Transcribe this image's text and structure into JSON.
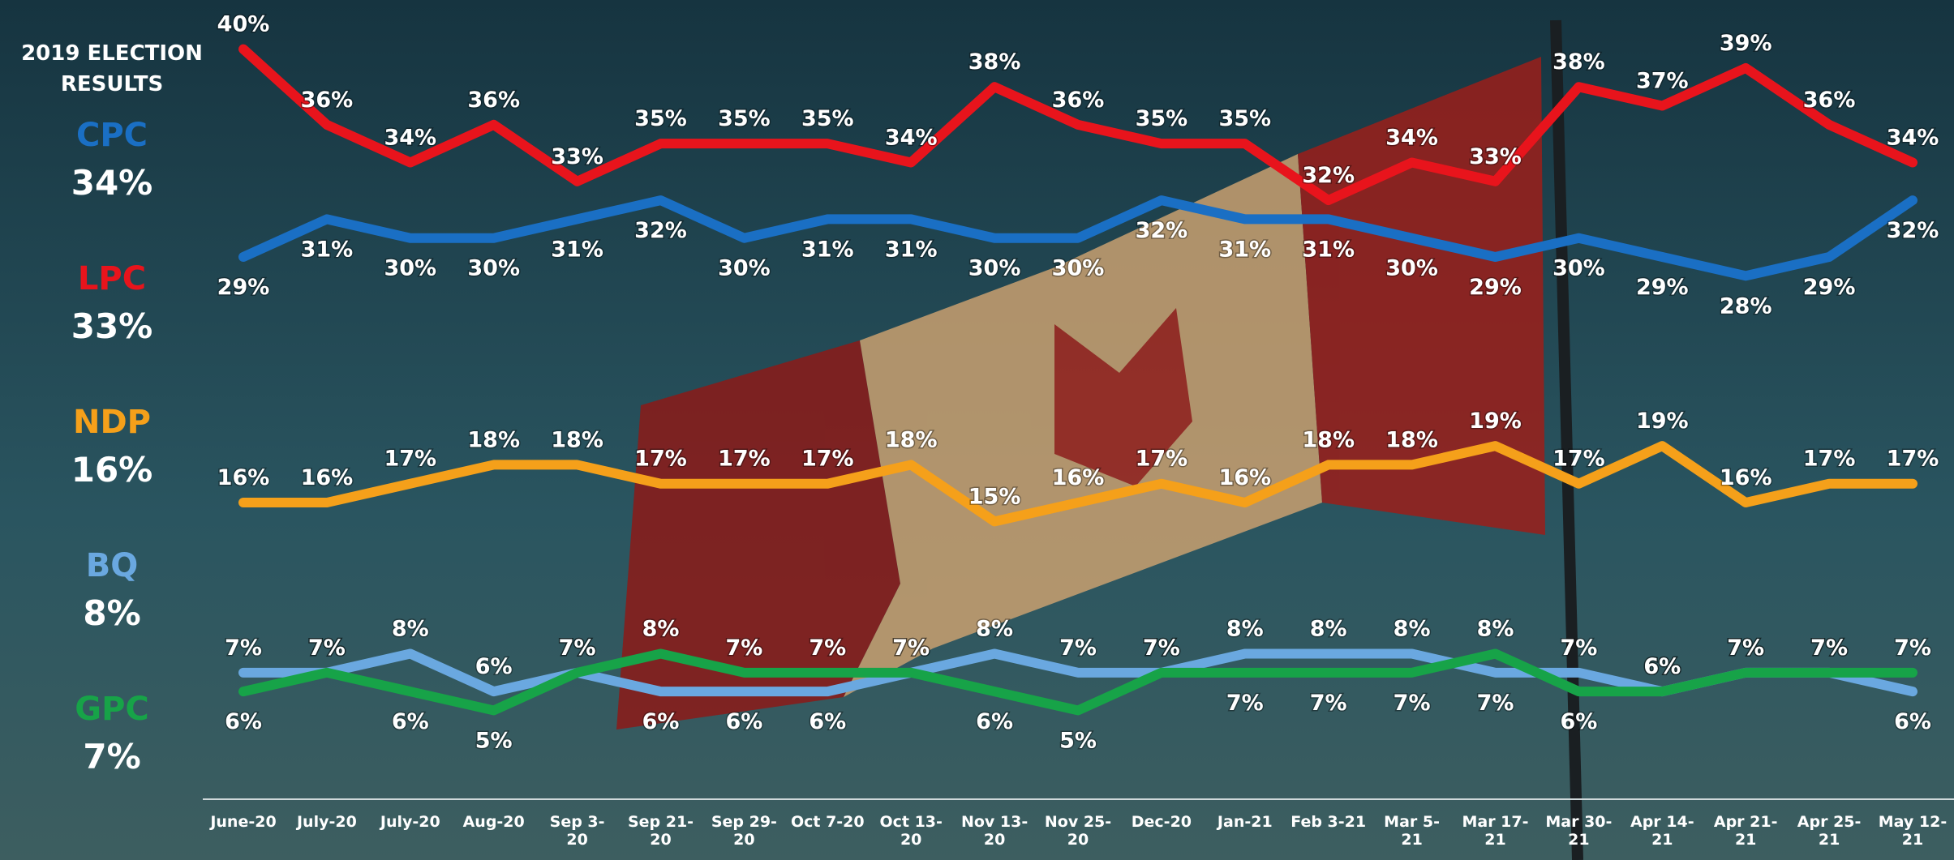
{
  "chart_data": {
    "type": "line",
    "side_title": "2019 ELECTION RESULTS",
    "election_results": [
      {
        "name": "CPC",
        "label": "34%"
      },
      {
        "name": "LPC",
        "label": "33%"
      },
      {
        "name": "NDP",
        "label": "16%"
      },
      {
        "name": "BQ",
        "label": "8%"
      },
      {
        "name": "GPC",
        "label": "7%"
      }
    ],
    "categories": [
      "June-20",
      "July-20",
      "July-20",
      "Aug-20",
      "Sep 3-20",
      "Sep 21-20",
      "Sep 29-20",
      "Oct 7-20",
      "Oct 13-20",
      "Nov 13-20",
      "Nov 25-20",
      "Dec-20",
      "Jan-21",
      "Feb 3-21",
      "Mar 5-21",
      "Mar 17-21",
      "Mar 30-21",
      "Apr 14-21",
      "Apr 21-21",
      "Apr 25-21",
      "May 12-21"
    ],
    "ylim": [
      0,
      42
    ],
    "series": [
      {
        "name": "LPC",
        "color": "#e8141c",
        "label_side": "above",
        "values": [
          40,
          36,
          34,
          36,
          33,
          35,
          35,
          35,
          34,
          38,
          36,
          35,
          35,
          32,
          34,
          33,
          38,
          37,
          39,
          36,
          34
        ],
        "value_labels": [
          "40%",
          "36%",
          "34%",
          "36%",
          "33%",
          "35%",
          "35%",
          "35%",
          "34%",
          "38%",
          "36%",
          "35%",
          "35%",
          "32%",
          "34%",
          "33%",
          "38%",
          "37%",
          "39%",
          "36%",
          "34%"
        ]
      },
      {
        "name": "CPC",
        "color": "#1a6fc4",
        "label_side": "below",
        "values": [
          29,
          31,
          30,
          30,
          31,
          32,
          30,
          31,
          31,
          30,
          30,
          32,
          31,
          31,
          30,
          29,
          30,
          29,
          28,
          29,
          32
        ],
        "value_labels": [
          "29%",
          "31%",
          "30%",
          "30%",
          "31%",
          "32%",
          "30%",
          "31%",
          "31%",
          "30%",
          "30%",
          "32%",
          "31%",
          "31%",
          "30%",
          "29%",
          "30%",
          "29%",
          "28%",
          "29%",
          "32%"
        ]
      },
      {
        "name": "NDP",
        "color": "#f5a01a",
        "label_side": "above",
        "values": [
          16,
          16,
          17,
          18,
          18,
          17,
          17,
          17,
          18,
          15,
          16,
          17,
          16,
          18,
          18,
          19,
          17,
          19,
          16,
          17,
          17
        ],
        "value_labels": [
          "16%",
          "16%",
          "17%",
          "18%",
          "18%",
          "17%",
          "17%",
          "17%",
          "18%",
          "15%",
          "16%",
          "17%",
          "16%",
          "18%",
          "18%",
          "19%",
          "17%",
          "19%",
          "16%",
          "17%",
          "17%"
        ]
      },
      {
        "name": "BQ",
        "color": "#6aa8e0",
        "label_side": "pair",
        "values": [
          7,
          7,
          8,
          6,
          7,
          6,
          6,
          6,
          7,
          8,
          7,
          7,
          8,
          8,
          8,
          7,
          7,
          6,
          7,
          7,
          6
        ],
        "value_labels": [
          "7%",
          "7%",
          "8%",
          "6%",
          "7%",
          "6%",
          "6%",
          "6%",
          "7%",
          "8%",
          "7%",
          "7%",
          "8%",
          "8%",
          "8%",
          "7%",
          "7%",
          "6%",
          "7%",
          "7%",
          "6%"
        ]
      },
      {
        "name": "GPC",
        "color": "#17a348",
        "label_side": "pair",
        "values": [
          6,
          7,
          6,
          5,
          7,
          8,
          7,
          7,
          7,
          6,
          5,
          7,
          7,
          7,
          7,
          8,
          6,
          6,
          7,
          7,
          7
        ],
        "value_labels": [
          "6%",
          "7%",
          "6%",
          "5%",
          "7%",
          "8%",
          "7%",
          "7%",
          "7%",
          "6%",
          "5%",
          "7%",
          "7%",
          "7%",
          "7%",
          "8%",
          "6%",
          "6%",
          "7%",
          "7%",
          "7%"
        ]
      }
    ]
  }
}
